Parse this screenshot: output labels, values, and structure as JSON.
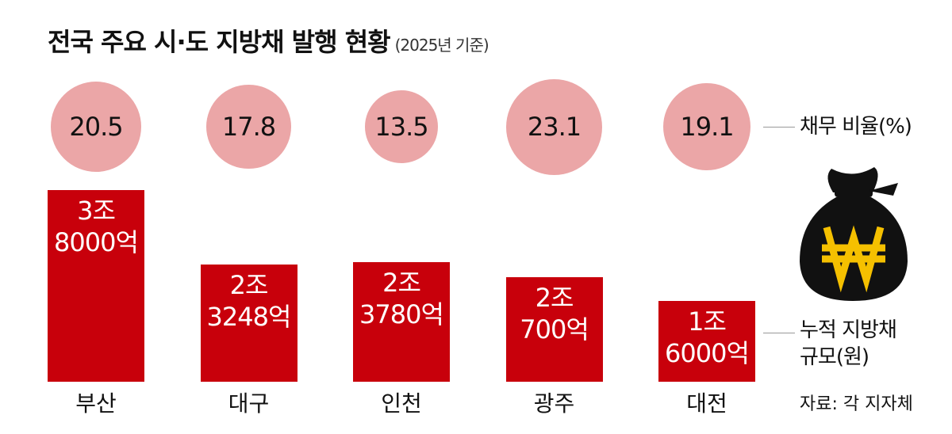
{
  "chart_data": {
    "type": "bar",
    "title": "전국 주요 시·도 지방채 발행 현황",
    "subtitle": "(2025년 기준)",
    "categories": [
      "부산",
      "대구",
      "인천",
      "광주",
      "대전"
    ],
    "series": [
      {
        "name": "채무 비율(%)",
        "color": "#eba6a7",
        "values": [
          20.5,
          17.8,
          13.5,
          23.1,
          19.1
        ]
      },
      {
        "name": "누적 지방채\n규모(원)",
        "color": "#c8000b",
        "values": [
          38000,
          23248,
          23780,
          20700,
          16000
        ],
        "value_labels": [
          "3조\n8000억",
          "2조\n3248억",
          "2조\n3780억",
          "2조\n700억",
          "1조\n6000억"
        ]
      }
    ],
    "source": "자료: 각 지자체"
  }
}
